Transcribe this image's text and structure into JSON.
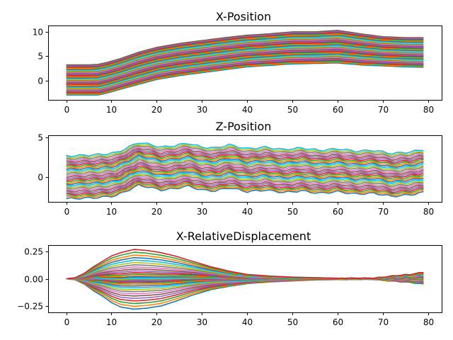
{
  "chart_data": [
    {
      "type": "line",
      "title": "X-Position",
      "xlabel": "",
      "ylabel": "",
      "xlim": [
        -4,
        83
      ],
      "ylim": [
        -4,
        11.3
      ],
      "xticks": [
        0,
        10,
        20,
        30,
        40,
        50,
        60,
        70,
        80
      ],
      "yticks": [
        0,
        5,
        10
      ],
      "grid": false,
      "legend": "none",
      "series_count": 36,
      "x": [
        0,
        5,
        7,
        9,
        12,
        16,
        20,
        25,
        30,
        35,
        40,
        45,
        50,
        55,
        60,
        65,
        70,
        75,
        79
      ],
      "envelope_upper": [
        3.2,
        3.2,
        3.3,
        3.7,
        4.5,
        5.8,
        6.8,
        7.6,
        8.2,
        8.8,
        9.3,
        9.6,
        10.0,
        10.0,
        10.3,
        9.6,
        9.0,
        8.8,
        8.8
      ],
      "envelope_lower": [
        -3.0,
        -3.0,
        -3.0,
        -2.6,
        -1.8,
        -0.8,
        0.2,
        1.0,
        1.6,
        2.2,
        2.8,
        3.1,
        3.4,
        3.5,
        3.6,
        3.2,
        3.0,
        2.8,
        2.7
      ]
    },
    {
      "type": "line",
      "title": "Z-Position",
      "xlabel": "",
      "ylabel": "",
      "xlim": [
        -4,
        83
      ],
      "ylim": [
        -3.1,
        5.3
      ],
      "xticks": [
        0,
        10,
        20,
        30,
        40,
        50,
        60,
        70,
        80
      ],
      "yticks": [
        0,
        5
      ],
      "grid": false,
      "legend": "none",
      "series_count": 30,
      "x": [
        0,
        5,
        8,
        11,
        13,
        16,
        18,
        21,
        24,
        27,
        30,
        33,
        36,
        40,
        44,
        48,
        52,
        56,
        60,
        64,
        68,
        72,
        76,
        79
      ],
      "center": [
        0.0,
        0.1,
        0.2,
        0.4,
        0.9,
        1.7,
        1.5,
        1.1,
        1.3,
        1.6,
        1.1,
        1.0,
        1.4,
        0.9,
        1.1,
        0.8,
        1.0,
        0.7,
        0.9,
        0.6,
        0.7,
        0.3,
        0.5,
        0.8
      ],
      "half_spread": 2.7
    },
    {
      "type": "line",
      "title": "X-RelativeDisplacement",
      "xlabel": "",
      "ylabel": "",
      "xlim": [
        -4,
        83
      ],
      "ylim": [
        -0.31,
        0.31
      ],
      "xticks": [
        0,
        10,
        20,
        30,
        40,
        50,
        60,
        70,
        80
      ],
      "yticks": [
        -0.25,
        0.0,
        0.25
      ],
      "ytick_labels": [
        "−0.25",
        "0.00",
        "0.25"
      ],
      "grid": false,
      "legend": "none",
      "series_count": 34,
      "x": [
        0,
        2,
        4,
        6,
        8,
        10,
        12,
        15,
        18,
        21,
        24,
        28,
        32,
        36,
        40,
        45,
        50,
        55,
        60,
        65,
        68,
        70,
        73,
        76,
        79
      ],
      "envelope_upper": [
        0.0,
        0.01,
        0.05,
        0.11,
        0.16,
        0.21,
        0.24,
        0.27,
        0.26,
        0.24,
        0.21,
        0.16,
        0.11,
        0.07,
        0.04,
        0.025,
        0.015,
        0.01,
        0.005,
        0.005,
        0.005,
        0.015,
        0.03,
        0.04,
        0.06
      ],
      "envelope_lower": [
        0.0,
        -0.01,
        -0.05,
        -0.11,
        -0.16,
        -0.22,
        -0.26,
        -0.28,
        -0.27,
        -0.25,
        -0.21,
        -0.15,
        -0.1,
        -0.07,
        -0.045,
        -0.03,
        -0.02,
        -0.012,
        -0.008,
        -0.005,
        -0.005,
        -0.015,
        -0.025,
        -0.035,
        -0.05
      ]
    }
  ],
  "colors": [
    "#1f77b4",
    "#ff7f0e",
    "#2ca02c",
    "#d62728",
    "#9467bd",
    "#8c564b",
    "#e377c2",
    "#7f7f7f",
    "#bcbd22",
    "#17becf"
  ]
}
